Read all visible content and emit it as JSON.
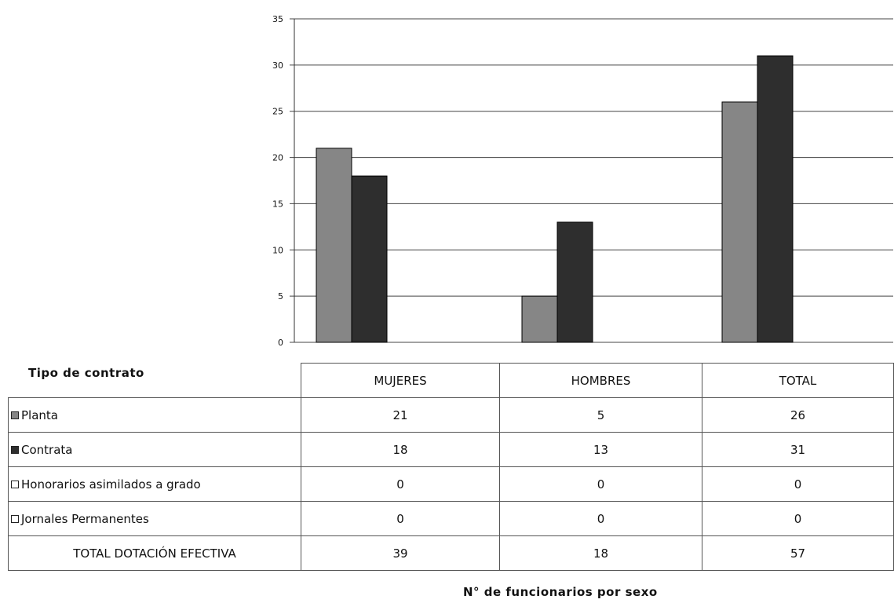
{
  "chart_data": {
    "type": "bar",
    "categories": [
      "MUJERES",
      "HOMBRES",
      "TOTAL"
    ],
    "series": [
      {
        "name": "Planta",
        "values": [
          21,
          5,
          26
        ],
        "color": "#868686"
      },
      {
        "name": "Contrata",
        "values": [
          18,
          13,
          31
        ],
        "color": "#2e2e2e"
      },
      {
        "name": "Honorarios asimilados a grado",
        "values": [
          0,
          0,
          0
        ],
        "color": "#ffffff"
      },
      {
        "name": "Jornales Permanentes",
        "values": [
          0,
          0,
          0
        ],
        "color": "#ffffff"
      }
    ],
    "ylim": [
      0,
      35
    ],
    "yticks": [
      0,
      5,
      10,
      15,
      20,
      25,
      30,
      35
    ],
    "ytick_labels": [
      "0",
      "5",
      "10",
      "15",
      "20",
      "25",
      "30",
      "35"
    ],
    "grid": true,
    "table_header_label": "Tipo de contrato",
    "total_row": {
      "label": "TOTAL DOTACIÓN EFECTIVA",
      "values": [
        39,
        18,
        57
      ]
    },
    "caption": "N° de funcionarios por sexo"
  }
}
